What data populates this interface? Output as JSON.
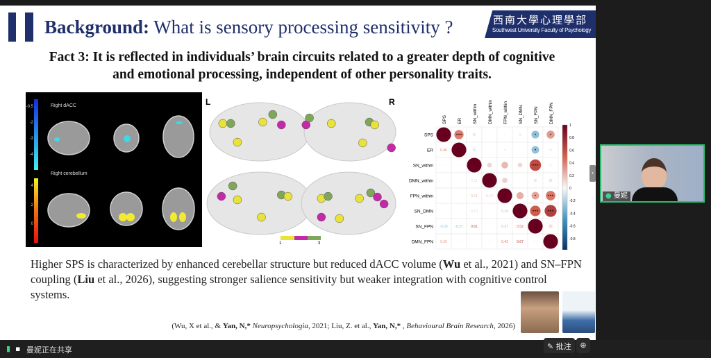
{
  "slide": {
    "title_bold": "Background:",
    "title_rest": " What is sensory processing sensitivity ?",
    "logo_cn": "西南大學心理學部",
    "logo_en": "Southwest University Faculty of Psychology",
    "fact_line1": "Fact 3: It is reflected in individuals’ brain circuits related to a greater depth of cognitive",
    "fact_line2": "and emotional processing, independent of other personality traits.",
    "mri": {
      "label_top": "Right dACC",
      "label_bottom": "Right cerebellum",
      "scale_top_ticks": [
        "-0.5",
        "-2",
        "-3",
        "-4"
      ],
      "scale_bottom_ticks": [
        "4",
        "2",
        "0"
      ]
    },
    "brains": {
      "left_label": "L",
      "right_label": "R",
      "legend_min": "1",
      "legend_max": "3",
      "legend_colors": [
        "#e8e23a",
        "#c42aa8",
        "#7fa65a"
      ]
    },
    "matrix": {
      "variables": [
        "SPS",
        "ER",
        "SN_within",
        "DMN_within",
        "FPN_within",
        "SN_DMN",
        "SN_FPN",
        "DMN_FPN"
      ],
      "values": [
        [
          1,
          0.4,
          -0.05,
          0,
          0.01,
          0.03,
          -0.28,
          0.3
        ],
        [
          0.4,
          1,
          -0.05,
          0,
          0.02,
          0,
          -0.27,
          0.03
        ],
        [
          -0.05,
          -0.05,
          1,
          0.11,
          0.21,
          0.1,
          0.61,
          0.02
        ],
        [
          0,
          0,
          0.11,
          1,
          0.13,
          0,
          0.05,
          0.06
        ],
        [
          0.01,
          0.02,
          0.21,
          0.13,
          1,
          0.24,
          0.27,
          0.42
        ],
        [
          0.03,
          0,
          0.1,
          0,
          0.24,
          1,
          0.52,
          0.67
        ],
        [
          -0.28,
          -0.27,
          0.61,
          0.05,
          0.27,
          0.52,
          1,
          0.07
        ],
        [
          0.3,
          0.03,
          0.02,
          0.06,
          0.42,
          0.67,
          0.07,
          1
        ]
      ],
      "stars": {
        "0-1": "***",
        "0-6": "*",
        "0-7": "*",
        "1-6": "*",
        "2-6": "***",
        "4-6": "*",
        "4-7": "***",
        "5-6": "***",
        "5-7": "***"
      },
      "colorbar_ticks": [
        "1",
        "0.8",
        "0.6",
        "0.4",
        "0.2",
        "0",
        "-0.2",
        "-0.4",
        "-0.6",
        "-0.8",
        "-1"
      ]
    },
    "body_text": {
      "p1": "Higher SPS is characterized by enhanced cerebellar structure but reduced dACC volume (",
      "b1": "Wu",
      "p2": " et al., 2021) and SN–FPN coupling (",
      "b2": "Liu",
      "p3": " et al., 2026), suggesting stronger salience sensitivity but weaker integration with cognitive control systems."
    },
    "citation": {
      "c1": "(Wu, X et al., & ",
      "c2": "Yan, N,*",
      "c3": " Neuropsychologia",
      "c4": ", 2021; Liu, Z. et al., ",
      "c5": "Yan, N,*",
      "c6": " , ",
      "c7": "Behavioural Brain Research,",
      "c8": " 2026)"
    }
  },
  "participant": {
    "name": "曼妮"
  },
  "bottom_bar": {
    "sharing_text": "曼妮正在共享",
    "annotate_label": "批注"
  }
}
